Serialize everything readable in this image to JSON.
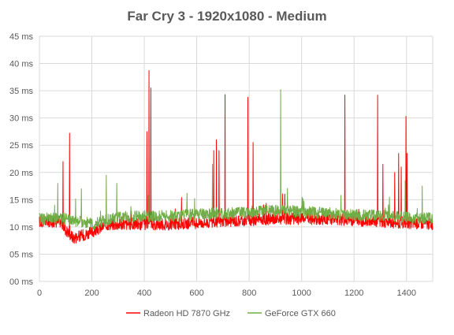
{
  "chart_data": {
    "type": "line",
    "title": "Far Cry 3 - 1920x1080 - Medium",
    "xlabel": "",
    "ylabel": "",
    "xlim": [
      0,
      1500
    ],
    "ylim": [
      0,
      45
    ],
    "x_ticks": [
      0,
      200,
      400,
      600,
      800,
      1000,
      1200,
      1400
    ],
    "x_tick_labels": [
      "0",
      "200",
      "400",
      "600",
      "800",
      "1000",
      "1200",
      "1400"
    ],
    "y_ticks": [
      0,
      5,
      10,
      15,
      20,
      25,
      30,
      35,
      40,
      45
    ],
    "y_tick_labels": [
      "00 ms",
      "05 ms",
      "10 ms",
      "15 ms",
      "20 ms",
      "25 ms",
      "30 ms",
      "35 ms",
      "40 ms",
      "45 ms"
    ],
    "grid": true,
    "legend_position": "bottom",
    "series": [
      {
        "name": "Radeon HD 7870 GHz",
        "color": "#ff0000",
        "baseline": [
          [
            0,
            11
          ],
          [
            80,
            11
          ],
          [
            100,
            9.5
          ],
          [
            130,
            8
          ],
          [
            200,
            9
          ],
          [
            260,
            10.5
          ],
          [
            500,
            10.5
          ],
          [
            700,
            11
          ],
          [
            900,
            11.5
          ],
          [
            1100,
            11.5
          ],
          [
            1300,
            11
          ],
          [
            1500,
            10.5
          ]
        ],
        "spikes": [
          [
            90,
            22
          ],
          [
            115,
            27.2
          ],
          [
            410,
            27.5
          ],
          [
            418,
            38.7
          ],
          [
            425,
            35.5
          ],
          [
            665,
            24
          ],
          [
            675,
            26
          ],
          [
            685,
            24
          ],
          [
            708,
            34.3
          ],
          [
            795,
            33.8
          ],
          [
            815,
            25.5
          ],
          [
            1165,
            34.2
          ],
          [
            1290,
            34.2
          ],
          [
            1310,
            21.5
          ],
          [
            1355,
            20
          ],
          [
            1370,
            23.5
          ],
          [
            1380,
            21
          ],
          [
            1398,
            30.3
          ],
          [
            1402,
            23.5
          ]
        ]
      },
      {
        "name": "GeForce GTX 660",
        "color": "#70ad47",
        "baseline": [
          [
            0,
            11.5
          ],
          [
            100,
            11.5
          ],
          [
            200,
            10.5
          ],
          [
            300,
            11.8
          ],
          [
            500,
            12
          ],
          [
            700,
            12.5
          ],
          [
            900,
            13
          ],
          [
            1100,
            12.5
          ],
          [
            1300,
            12
          ],
          [
            1500,
            11.5
          ]
        ],
        "spikes": [
          [
            70,
            18
          ],
          [
            160,
            17
          ],
          [
            255,
            19.5
          ],
          [
            295,
            18
          ],
          [
            415,
            15.8
          ],
          [
            660,
            21.5
          ],
          [
            920,
            35.2
          ],
          [
            1005,
            15.2
          ],
          [
            1150,
            15.8
          ],
          [
            1335,
            15.5
          ],
          [
            1395,
            18.5
          ],
          [
            1460,
            17.5
          ]
        ]
      }
    ]
  }
}
